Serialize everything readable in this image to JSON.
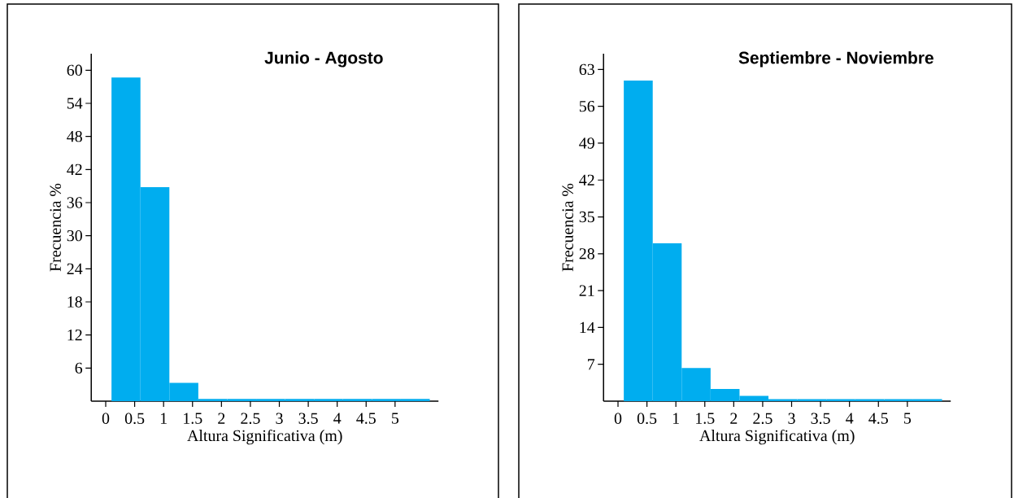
{
  "chart_data": [
    {
      "type": "histogram",
      "title": "Junio - Agosto",
      "xlabel": "Altura Significativa (m)",
      "ylabel": "Frecuencia %",
      "color": "#00adef",
      "bins": [
        0.1,
        0.6,
        1.1,
        1.6,
        2.1,
        2.6,
        3.1,
        3.6,
        4.1,
        4.6,
        5.1,
        5.6
      ],
      "values": [
        58.7,
        38.8,
        3.3,
        0.4,
        0.4,
        0.4,
        0.4,
        0.4,
        0.4,
        0.4,
        0.4
      ],
      "xlim": [
        -0.25,
        5.75
      ],
      "ylim": [
        0,
        63
      ],
      "xticks": [
        0,
        0.5,
        1,
        1.5,
        2,
        2.5,
        3,
        3.5,
        4,
        4.5,
        5
      ],
      "yticks": [
        6,
        12,
        18,
        24,
        30,
        36,
        42,
        48,
        54,
        60
      ],
      "grid": false
    },
    {
      "type": "histogram",
      "title": "Septiembre - Noviembre",
      "xlabel": "Altura Significativa (m)",
      "ylabel": "Frecuencia %",
      "color": "#00adef",
      "bins": [
        0.1,
        0.6,
        1.1,
        1.6,
        2.1,
        2.6,
        3.1,
        3.6,
        4.1,
        4.6,
        5.1,
        5.6
      ],
      "values": [
        60.9,
        30.0,
        6.3,
        2.3,
        1.0,
        0.4,
        0.4,
        0.4,
        0.4,
        0.4,
        0.4
      ],
      "xlim": [
        -0.25,
        5.75
      ],
      "ylim": [
        0,
        66
      ],
      "xticks": [
        0,
        0.5,
        1,
        1.5,
        2,
        2.5,
        3,
        3.5,
        4,
        4.5,
        5
      ],
      "yticks": [
        7,
        14,
        21,
        28,
        35,
        42,
        49,
        56,
        63
      ],
      "grid": false
    }
  ]
}
